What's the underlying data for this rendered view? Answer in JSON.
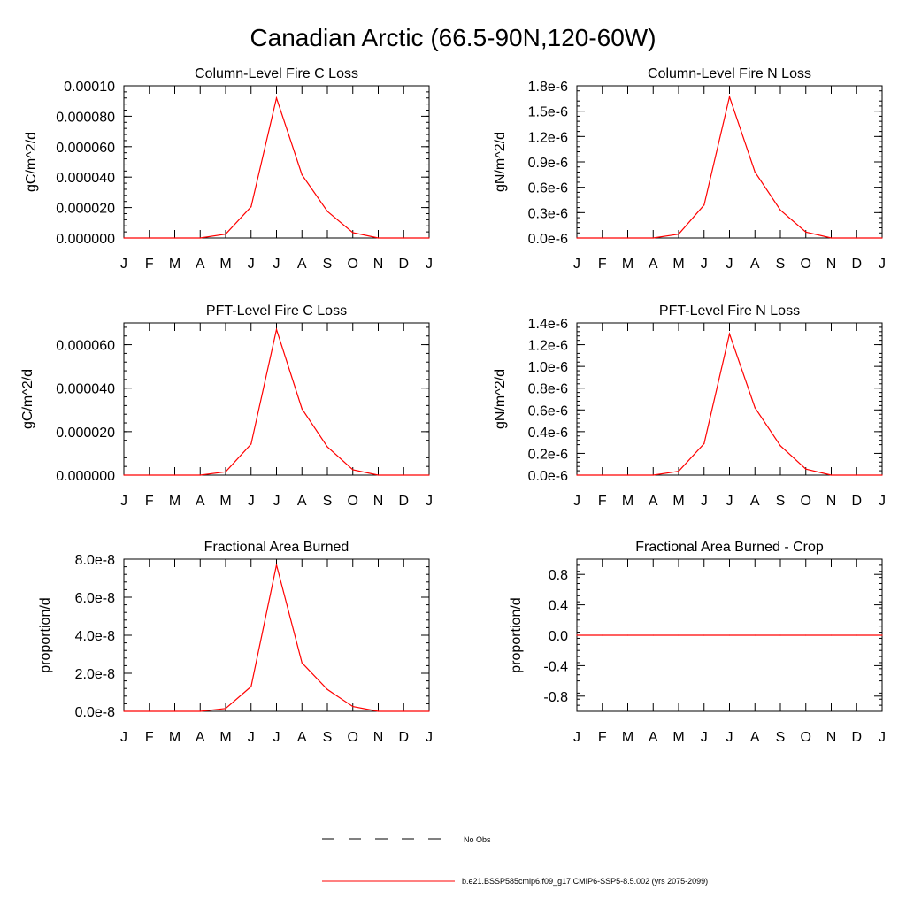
{
  "figure": {
    "title": "Canadian Arctic (66.5-90N,120-60W)",
    "legend": {
      "obs_label": "No Obs",
      "model_label": "b.e21.BSSP585cmip6.f09_g17.CMIP6-SSP5-8.5.002 (yrs 2075-2099)",
      "obs_color": "#000000",
      "model_color": "#ff0000"
    }
  },
  "chart_data": [
    {
      "type": "line",
      "title": "Column-Level Fire C Loss",
      "ylabel": "gC/m^2/d",
      "xlabel": "",
      "categories": [
        "J",
        "F",
        "M",
        "A",
        "M",
        "J",
        "J",
        "A",
        "S",
        "O",
        "N",
        "D",
        "J"
      ],
      "ylim": [
        0,
        0.0001
      ],
      "yticks": [
        0,
        2e-05,
        4e-05,
        6e-05,
        8e-05,
        0.0001
      ],
      "yticklabels": [
        "0.000000",
        "0.000020",
        "0.000040",
        "0.000060",
        "0.000080",
        "0.00010"
      ],
      "series": [
        {
          "values": [
            0,
            0,
            0,
            0,
            2.5e-06,
            2.05e-05,
            9.2e-05,
            4.15e-05,
            1.75e-05,
            3.5e-06,
            0,
            0,
            0
          ],
          "color": "#ff0000"
        }
      ]
    },
    {
      "type": "line",
      "title": "Column-Level Fire N Loss",
      "ylabel": "gN/m^2/d",
      "xlabel": "",
      "categories": [
        "J",
        "F",
        "M",
        "A",
        "M",
        "J",
        "J",
        "A",
        "S",
        "O",
        "N",
        "D",
        "J"
      ],
      "ylim": [
        0,
        1.8e-06
      ],
      "yticks": [
        0,
        3e-07,
        6e-07,
        9e-07,
        1.2e-06,
        1.5e-06,
        1.8e-06
      ],
      "yticklabels": [
        "0.0e-6",
        "0.3e-6",
        "0.6e-6",
        "0.9e-6",
        "1.2e-6",
        "1.5e-6",
        "1.8e-6"
      ],
      "series": [
        {
          "values": [
            0,
            0,
            0,
            0,
            4.5e-08,
            3.9e-07,
            1.67e-06,
            7.8e-07,
            3.3e-07,
            7e-08,
            0,
            0,
            0
          ],
          "color": "#ff0000"
        }
      ]
    },
    {
      "type": "line",
      "title": "PFT-Level Fire C Loss",
      "ylabel": "gC/m^2/d",
      "xlabel": "",
      "categories": [
        "J",
        "F",
        "M",
        "A",
        "M",
        "J",
        "J",
        "A",
        "S",
        "O",
        "N",
        "D",
        "J"
      ],
      "ylim": [
        0,
        7e-05
      ],
      "yticks": [
        0,
        2e-05,
        4e-05,
        6e-05
      ],
      "yticklabels": [
        "0.000000",
        "0.000020",
        "0.000040",
        "0.000060"
      ],
      "series": [
        {
          "values": [
            0,
            0,
            0,
            0,
            1.5e-06,
            1.43e-05,
            6.7e-05,
            3.05e-05,
            1.3e-05,
            2.5e-06,
            0,
            0,
            0
          ],
          "color": "#ff0000"
        }
      ]
    },
    {
      "type": "line",
      "title": "PFT-Level Fire N Loss",
      "ylabel": "gN/m^2/d",
      "xlabel": "",
      "categories": [
        "J",
        "F",
        "M",
        "A",
        "M",
        "J",
        "J",
        "A",
        "S",
        "O",
        "N",
        "D",
        "J"
      ],
      "ylim": [
        0,
        1.4e-06
      ],
      "yticks": [
        0,
        2e-07,
        4e-07,
        6e-07,
        8e-07,
        1e-06,
        1.2e-06,
        1.4e-06
      ],
      "yticklabels": [
        "0.0e-6",
        "0.2e-6",
        "0.4e-6",
        "0.6e-6",
        "0.8e-6",
        "1.0e-6",
        "1.2e-6",
        "1.4e-6"
      ],
      "series": [
        {
          "values": [
            0,
            0,
            0,
            0,
            3.5e-08,
            2.9e-07,
            1.3e-06,
            6.2e-07,
            2.7e-07,
            5.5e-08,
            0,
            0,
            0
          ],
          "color": "#ff0000"
        }
      ]
    },
    {
      "type": "line",
      "title": "Fractional Area Burned",
      "ylabel": "proportion/d",
      "xlabel": "",
      "categories": [
        "J",
        "F",
        "M",
        "A",
        "M",
        "J",
        "J",
        "A",
        "S",
        "O",
        "N",
        "D",
        "J"
      ],
      "ylim": [
        0,
        8e-08
      ],
      "yticks": [
        0,
        2e-08,
        4e-08,
        6e-08,
        8e-08
      ],
      "yticklabels": [
        "0.0e-8",
        "2.0e-8",
        "4.0e-8",
        "6.0e-8",
        "8.0e-8"
      ],
      "series": [
        {
          "values": [
            0,
            0,
            0,
            0,
            1.5e-09,
            1.3e-08,
            7.7e-08,
            2.55e-08,
            1.15e-08,
            2.5e-09,
            0,
            0,
            0
          ],
          "color": "#ff0000"
        }
      ]
    },
    {
      "type": "line",
      "title": "Fractional Area Burned - Crop",
      "ylabel": "proportion/d",
      "xlabel": "",
      "categories": [
        "J",
        "F",
        "M",
        "A",
        "M",
        "J",
        "J",
        "A",
        "S",
        "O",
        "N",
        "D",
        "J"
      ],
      "ylim": [
        -1,
        1
      ],
      "yticks": [
        -0.8,
        -0.4,
        0,
        0.4,
        0.8
      ],
      "yticklabels": [
        "-0.8",
        "-0.4",
        "0.0",
        "0.4",
        "0.8"
      ],
      "series": [
        {
          "values": [
            0,
            0,
            0,
            0,
            0,
            0,
            0,
            0,
            0,
            0,
            0,
            0,
            0
          ],
          "color": "#ff0000"
        }
      ]
    }
  ]
}
